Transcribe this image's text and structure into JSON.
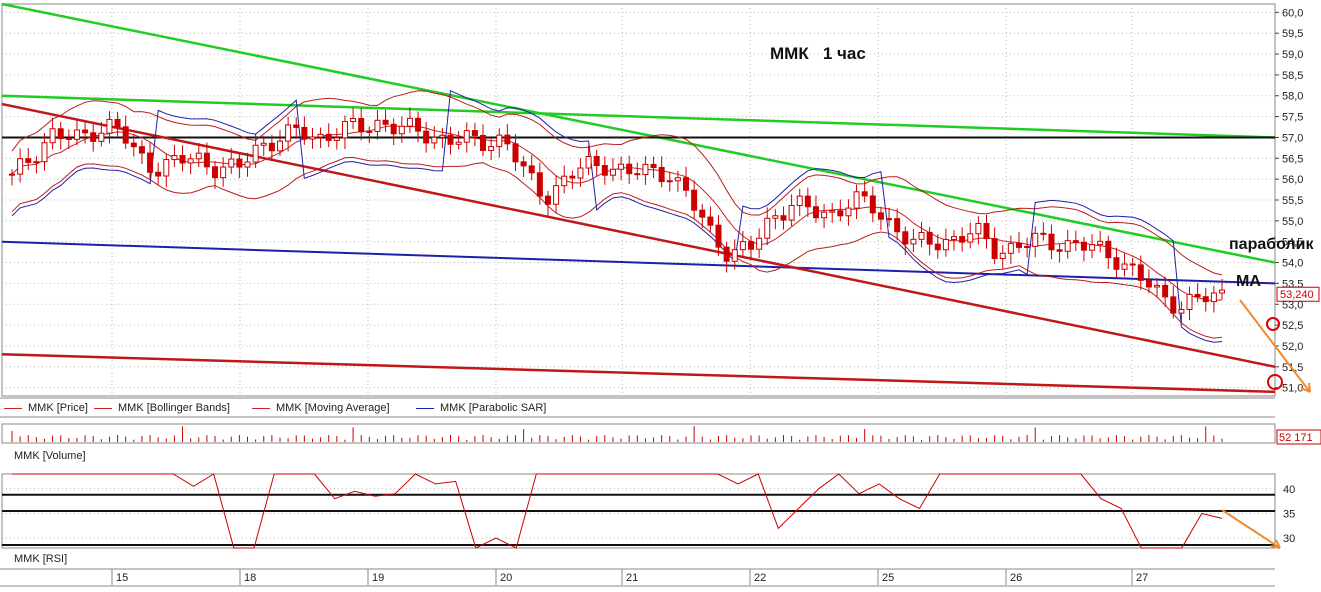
{
  "title": "ММК   1 час",
  "annotations": {
    "parabolic": "параболик",
    "ma": "МА"
  },
  "price_axis": {
    "ticks": [
      "60,0",
      "59,5",
      "59,0",
      "58,5",
      "58,0",
      "57,5",
      "57,0",
      "56,5",
      "56,0",
      "55,5",
      "55,0",
      "54,5",
      "54,0",
      "53,5",
      "53,0",
      "52,5",
      "52,0",
      "51,5",
      "51,0"
    ],
    "last_price": "53,240"
  },
  "volume_axis": {
    "last_value": "52 171"
  },
  "rsi_axis": {
    "ticks": [
      "40",
      "35",
      "30"
    ]
  },
  "legend": [
    {
      "label": "MMK [Price]",
      "color": "#cc2222"
    },
    {
      "label": "MMK [Bollinger Bands]",
      "color": "#cc2222"
    },
    {
      "label": "MMK [Moving Average]",
      "color": "#cc2222"
    },
    {
      "label": "MMK [Parabolic SAR]",
      "color": "#1f1fa8"
    }
  ],
  "volume_panel_label": "MMK [Volume]",
  "rsi_panel_label": "MMK [RSI]",
  "date_axis": [
    "15",
    "18",
    "19",
    "20",
    "21",
    "22",
    "25",
    "26",
    "27"
  ],
  "colors": {
    "candle": "#cc0000",
    "bollinger": "#b81e1e",
    "ma": "#cc2222",
    "sar": "#1f1fa8",
    "trend_green": "#22cc22",
    "trend_red": "#c01818",
    "trend_blue": "#1f1fa8",
    "arrow": "#f08a30",
    "grid": "#b8b8b8"
  },
  "chart_data": [
    {
      "type": "candlestick",
      "timeframe": "1 hour",
      "dates": [
        "15",
        "18",
        "19",
        "20",
        "21",
        "22",
        "25",
        "26",
        "27"
      ],
      "ylim": [
        50.8,
        60.2
      ],
      "last_price": 53.24,
      "close_path": [
        56.0,
        56.6,
        57.1,
        56.9,
        57.2,
        57.3,
        56.6,
        56.3,
        56.4,
        56.5,
        56.3,
        56.2,
        56.8,
        57.0,
        57.1,
        57.0,
        57.2,
        57.2,
        57.4,
        57.2,
        57.1,
        57.0,
        56.9,
        56.9,
        57.0,
        56.1,
        55.6,
        56.0,
        56.3,
        56.4,
        56.1,
        56.2,
        56.2,
        55.5,
        54.8,
        54.2,
        54.3,
        55.1,
        55.4,
        55.2,
        55.2,
        55.5,
        55.3,
        54.9,
        54.4,
        54.5,
        54.6,
        54.7,
        54.3,
        54.4,
        54.5,
        54.5,
        54.4,
        54.3,
        54.1,
        53.6,
        53.2,
        53.0,
        53.1,
        53.24
      ],
      "trendlines": [
        {
          "color": "green",
          "from": 60.2,
          "to": 54.0
        },
        {
          "color": "green",
          "from": 58.0,
          "to": 57.0
        },
        {
          "color": "black",
          "from": 57.0,
          "to": 57.0
        },
        {
          "color": "blue",
          "from": 54.5,
          "to": 53.5
        },
        {
          "color": "red",
          "from": 57.8,
          "to": 51.5
        },
        {
          "color": "red",
          "from": 51.8,
          "to": 50.9
        }
      ]
    },
    {
      "type": "bar",
      "name": "Volume",
      "last_value": 52171
    },
    {
      "type": "line",
      "name": "RSI",
      "ticks": [
        40,
        35,
        30
      ],
      "ylim": [
        28,
        43
      ],
      "values": [
        43,
        43,
        43,
        43,
        43,
        43,
        43,
        43,
        43,
        40.5,
        43,
        28,
        28,
        43,
        43,
        43,
        38,
        39.5,
        38.5,
        39,
        43,
        41,
        41.5,
        28,
        30,
        28,
        43,
        43,
        43,
        43,
        43,
        43,
        43,
        43,
        43,
        43,
        41,
        43,
        32,
        36,
        40,
        43,
        39,
        41,
        38,
        36,
        43,
        43,
        43,
        43,
        43,
        43,
        43,
        43,
        38,
        36,
        28,
        28,
        28,
        35,
        34
      ]
    }
  ]
}
